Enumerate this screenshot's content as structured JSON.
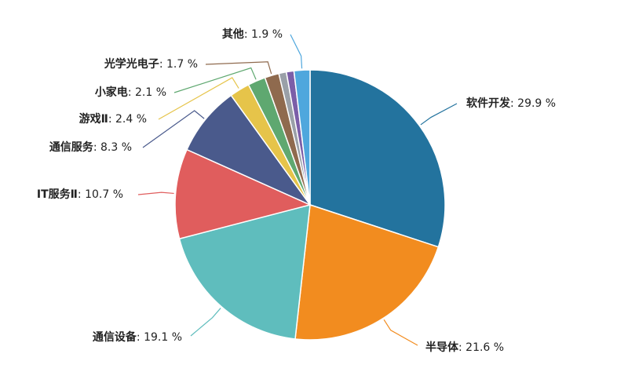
{
  "chart_data": {
    "type": "pie",
    "title": "",
    "legend": "none",
    "value_suffix": " %",
    "slices": [
      {
        "label": "软件开发",
        "value": 29.9,
        "color": "#23739e"
      },
      {
        "label": "半导体",
        "value": 21.6,
        "color": "#f28c1f"
      },
      {
        "label": "通信设备",
        "value": 19.1,
        "color": "#5fbdbd"
      },
      {
        "label": "IT服务Ⅱ",
        "value": 10.7,
        "color": "#e05d5d"
      },
      {
        "label": "通信服务",
        "value": 8.3,
        "color": "#4a5a8c"
      },
      {
        "label": "游戏Ⅱ",
        "value": 2.4,
        "color": "#e6c44a"
      },
      {
        "label": "小家电",
        "value": 2.1,
        "color": "#5fa870"
      },
      {
        "label": "光学光电子",
        "value": 1.7,
        "color": "#8f6a4e"
      },
      {
        "label": "",
        "value": 0.9,
        "color": "#9aa0a8"
      },
      {
        "label": "",
        "value": 0.9,
        "color": "#7b5ea8"
      },
      {
        "label": "其他",
        "value": 1.9,
        "color": "#4fa7dd"
      }
    ]
  }
}
